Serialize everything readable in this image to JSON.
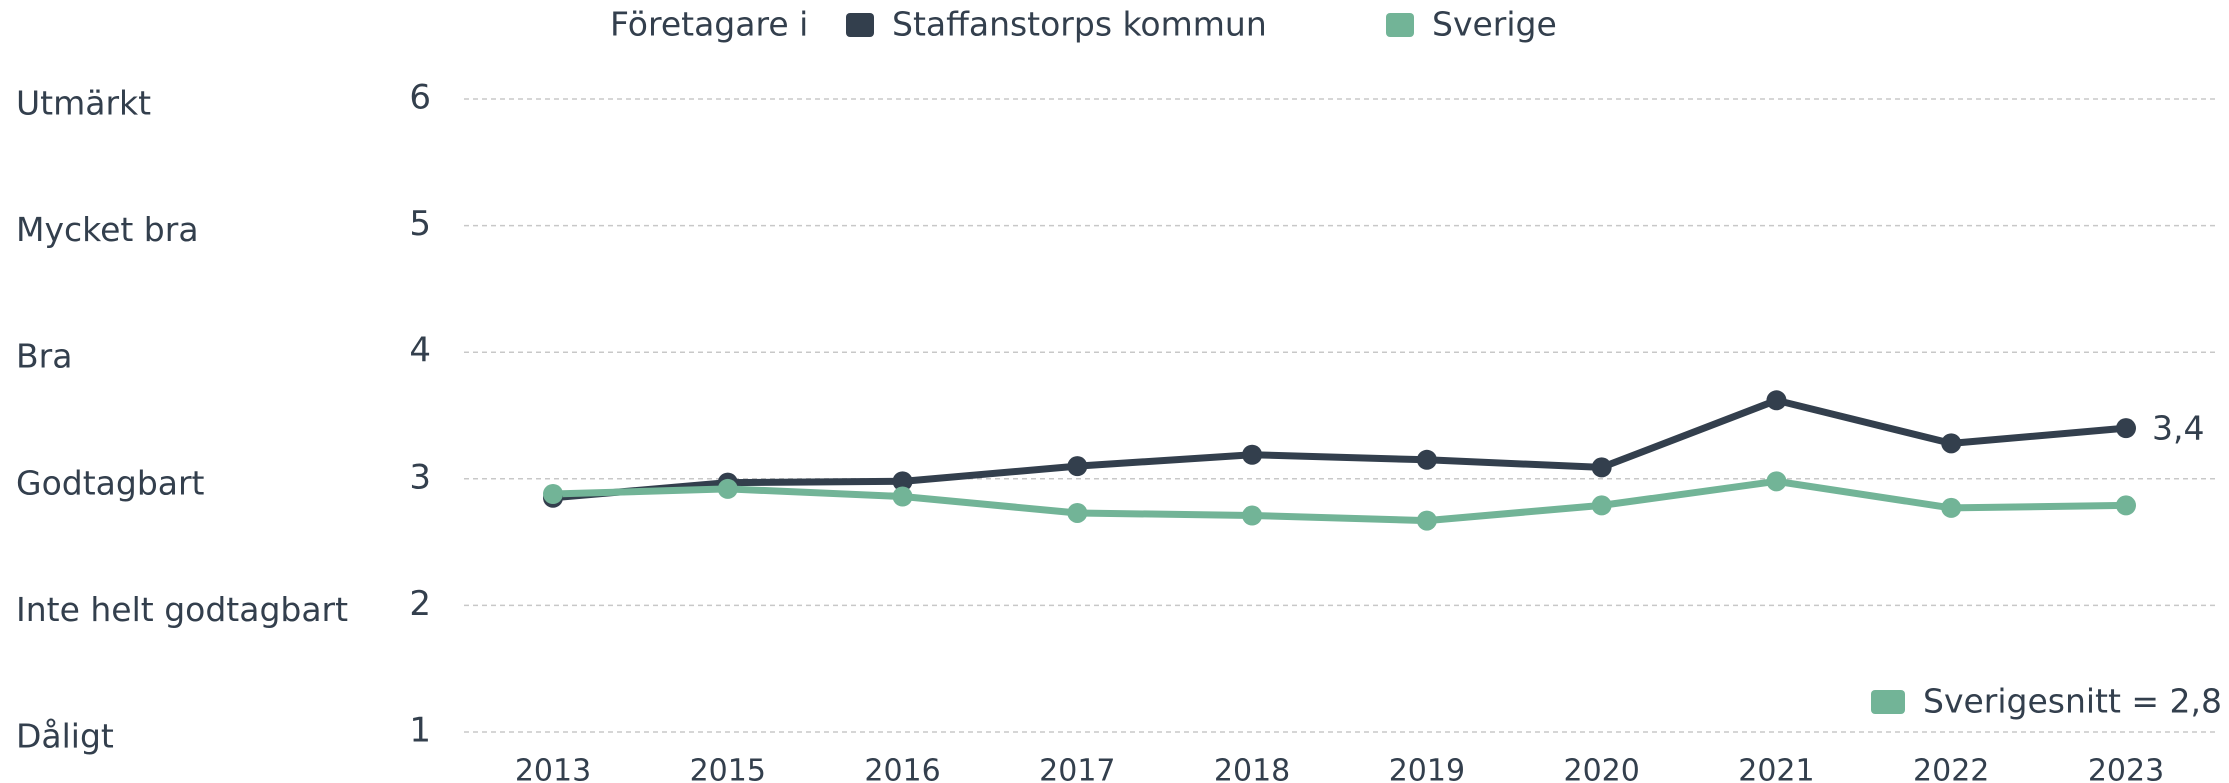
{
  "chart_data": {
    "type": "line",
    "legend_title": "Företagare i",
    "categories": [
      "2013",
      "2015",
      "2016",
      "2017",
      "2018",
      "2019",
      "2020",
      "2021",
      "2022",
      "2023"
    ],
    "series": [
      {
        "name": "Staffanstorps kommun",
        "color": "#333f4d",
        "values": [
          2.85,
          2.97,
          2.98,
          3.1,
          3.19,
          3.15,
          3.09,
          3.62,
          3.28,
          3.4
        ],
        "value_labels": [
          null,
          null,
          null,
          null,
          null,
          null,
          null,
          null,
          null,
          "3,4"
        ]
      },
      {
        "name": "Sverige",
        "color": "#72b497",
        "values": [
          2.88,
          2.92,
          2.86,
          2.73,
          2.71,
          2.67,
          2.79,
          2.98,
          2.77,
          2.79
        ]
      }
    ],
    "ylim": [
      1,
      6
    ],
    "yticks": [
      1,
      2,
      3,
      4,
      5,
      6
    ],
    "ytick_level_labels": [
      "Dåligt",
      "Inte helt godtagbart",
      "Godtagbart",
      "Bra",
      "Mycket bra",
      "Utmärkt"
    ],
    "grid": true,
    "annotation": {
      "text": "Sverigesnitt = 2,8",
      "color": "#72b497"
    }
  }
}
